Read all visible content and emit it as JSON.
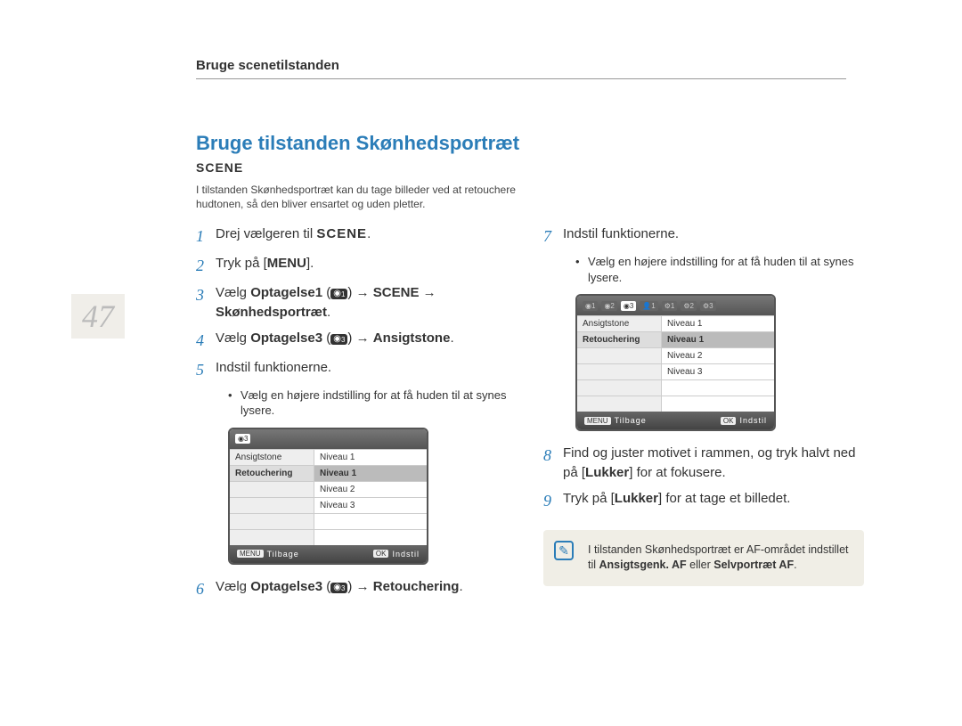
{
  "page_number": "47",
  "header": "Bruge scenetilstanden",
  "title": {
    "text": "Bruge tilstanden Skønhedsportræt",
    "color": "#2b7db8"
  },
  "scene_label": "SCENE",
  "intro": "I tilstanden Skønhedsportræt kan du tage billeder ved at retouchere hudtonen, så den bliver ensartet og uden pletter.",
  "step_color": "#2b7db8",
  "steps_left": [
    {
      "n": "1",
      "html": "Drej vælgeren til <b style='font-family:Arial Narrow,Arial;letter-spacing:1px'>SCENE</b>."
    },
    {
      "n": "2",
      "html": "Tryk på [<b>MENU</b>]."
    },
    {
      "n": "3",
      "html": "Vælg <b>Optagelse1</b> (<span class='cam-icon'>◉<sub>1</sub></span>) → <b>SCENE</b> → <b>Skønhedsportræt</b>."
    },
    {
      "n": "4",
      "html": "Vælg <b>Optagelse3</b> (<span class='cam-icon'>◉<sub>3</sub></span>) → <b>Ansigtstone</b>."
    },
    {
      "n": "5",
      "html": "Indstil funktionerne.",
      "sub": "Vælg en højere indstilling for at få huden til at synes lysere.",
      "menu": true
    },
    {
      "n": "6",
      "html": "Vælg <b>Optagelse3</b> (<span class='cam-icon'>◉<sub>3</sub></span>) → <b>Retouchering</b>."
    }
  ],
  "steps_right": [
    {
      "n": "7",
      "html": "Indstil funktionerne.",
      "sub": "Vælg en højere indstilling for at få huden til at synes lysere.",
      "menu": true,
      "wide_tabs": true
    },
    {
      "n": "8",
      "html": "Find og juster motivet i rammen, og tryk halvt ned på [<b>Lukker</b>] for at fokusere."
    },
    {
      "n": "9",
      "html": "Tryk på [<b>Lukker</b>] for at tage et billedet."
    }
  ],
  "menu": {
    "tabs_narrow": [
      "◉3"
    ],
    "tabs_wide": [
      "◉1",
      "◉2",
      "◉3",
      "👤1",
      "⚙1",
      "⚙2",
      "⚙3"
    ],
    "tabs_wide_selected": 2,
    "rows": [
      {
        "k": "Ansigtstone",
        "v": "Niveau 1"
      },
      {
        "k": "Retouchering",
        "v": "Niveau 1",
        "sel": true
      },
      {
        "k": "",
        "v": "Niveau 2"
      },
      {
        "k": "",
        "v": "Niveau 3"
      },
      {
        "k": "",
        "v": ""
      },
      {
        "k": "",
        "v": ""
      }
    ],
    "foot_left_key": "MENU",
    "foot_left": "Tilbage",
    "foot_right_key": "OK",
    "foot_right": "Indstil"
  },
  "note": {
    "html": "I tilstanden Skønhedsportræt er AF-området indstillet til <b>Ansigtsgenk. AF</b> eller <b>Selvportræt AF</b>."
  }
}
